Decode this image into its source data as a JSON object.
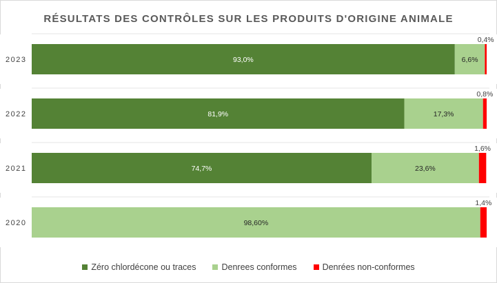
{
  "chart_data": {
    "type": "bar",
    "orientation": "horizontal",
    "stacked": true,
    "title": "RÉSULTATS DES CONTRÔLES SUR LES PRODUITS D'ORIGINE ANIMALE",
    "categories": [
      "2023",
      "2022",
      "2021",
      "2020"
    ],
    "series": [
      {
        "name": "Zéro chlordécone ou traces",
        "color": "#548235",
        "values": [
          93.0,
          81.9,
          74.7,
          0
        ],
        "labels": [
          "93,0%",
          "81,9%",
          "74,7%",
          ""
        ]
      },
      {
        "name": "Denrees conformes",
        "color": "#a9d18e",
        "values": [
          6.6,
          17.3,
          23.6,
          98.6
        ],
        "labels": [
          "6,6%",
          "17,3%",
          "23,6%",
          "98,60%"
        ]
      },
      {
        "name": "Denrées non-conformes",
        "color": "#ff0000",
        "values": [
          0.4,
          0.8,
          1.6,
          1.4
        ],
        "labels": [
          "0,4%",
          "0,8%",
          "1,6%",
          "1,4%"
        ]
      }
    ],
    "xlim": [
      0,
      100
    ],
    "grid": false,
    "legend_position": "bottom"
  }
}
